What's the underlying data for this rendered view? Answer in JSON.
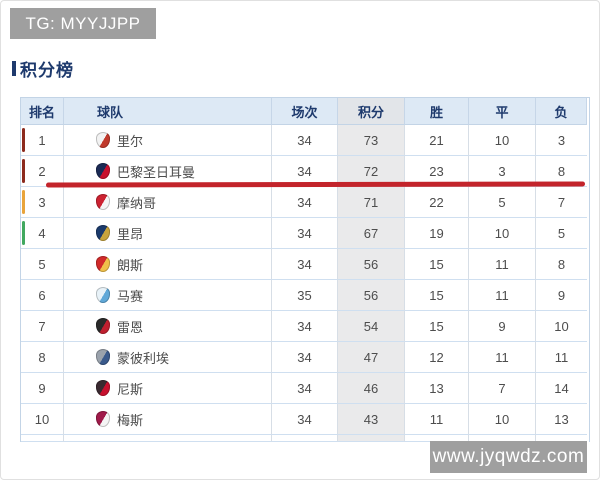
{
  "watermarks": {
    "top": "TG: MYYJJPP",
    "bottom": "www.jyqwdz.com"
  },
  "section": {
    "title": "积分榜"
  },
  "table": {
    "headers": [
      "排名",
      "球队",
      "场次",
      "积分",
      "胜",
      "平",
      "负"
    ],
    "rows": [
      {
        "rank": "1",
        "team": "里尔",
        "played": "34",
        "points": "73",
        "win": "21",
        "draw": "10",
        "loss": "3",
        "marker": "#8c2a1d",
        "logo": [
          "#f2f2f2",
          "#c0392b"
        ]
      },
      {
        "rank": "2",
        "team": "巴黎圣日耳曼",
        "played": "34",
        "points": "72",
        "win": "23",
        "draw": "3",
        "loss": "8",
        "marker": "#8c2a1d",
        "logo": [
          "#1b2a55",
          "#c8102e"
        ],
        "underlined": true
      },
      {
        "rank": "3",
        "team": "摩纳哥",
        "played": "34",
        "points": "71",
        "win": "22",
        "draw": "5",
        "loss": "7",
        "marker": "#e9a43b",
        "logo": [
          "#cc2231",
          "#f5f5f5"
        ]
      },
      {
        "rank": "4",
        "team": "里昂",
        "played": "34",
        "points": "67",
        "win": "19",
        "draw": "10",
        "loss": "5",
        "marker": "#41a85f",
        "logo": [
          "#1b3a6b",
          "#c8a43c"
        ]
      },
      {
        "rank": "5",
        "team": "朗斯",
        "played": "34",
        "points": "56",
        "win": "15",
        "draw": "11",
        "loss": "8",
        "marker": null,
        "logo": [
          "#d12a2a",
          "#f0c04a"
        ]
      },
      {
        "rank": "6",
        "team": "马赛",
        "played": "35",
        "points": "56",
        "win": "15",
        "draw": "11",
        "loss": "9",
        "marker": null,
        "logo": [
          "#e8f2f8",
          "#5fa8d8"
        ]
      },
      {
        "rank": "7",
        "team": "雷恩",
        "played": "34",
        "points": "54",
        "win": "15",
        "draw": "9",
        "loss": "10",
        "marker": null,
        "logo": [
          "#2a2a2a",
          "#c01f2f"
        ]
      },
      {
        "rank": "8",
        "team": "蒙彼利埃",
        "played": "34",
        "points": "47",
        "win": "12",
        "draw": "11",
        "loss": "11",
        "marker": null,
        "logo": [
          "#9aa2ac",
          "#3a5a8c"
        ]
      },
      {
        "rank": "9",
        "team": "尼斯",
        "played": "34",
        "points": "46",
        "win": "13",
        "draw": "7",
        "loss": "14",
        "marker": null,
        "logo": [
          "#3a2a30",
          "#c8102e"
        ]
      },
      {
        "rank": "10",
        "team": "梅斯",
        "played": "34",
        "points": "43",
        "win": "11",
        "draw": "10",
        "loss": "13",
        "marker": null,
        "logo": [
          "#a01a4a",
          "#f5f5f5"
        ]
      }
    ],
    "annotation": {
      "underline_color": "#c3242b"
    }
  }
}
